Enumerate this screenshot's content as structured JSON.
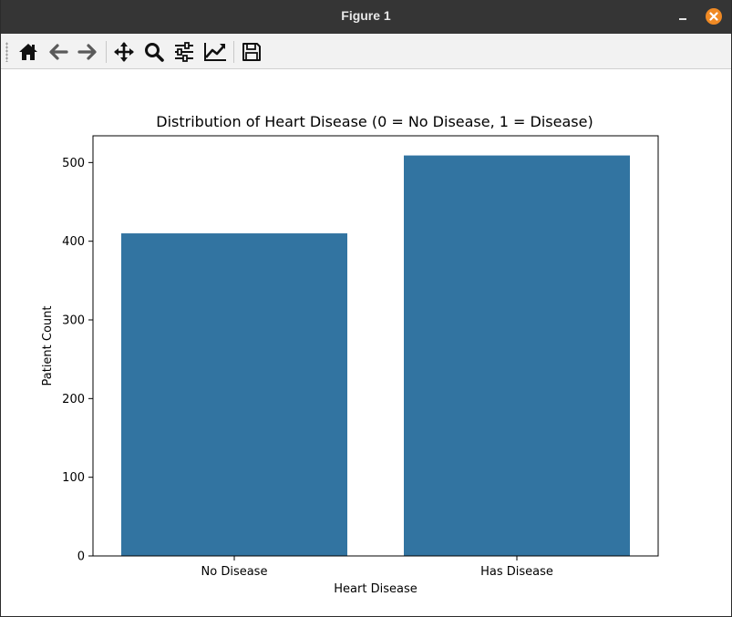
{
  "window": {
    "title": "Figure 1"
  },
  "toolbar": {
    "tools": [
      {
        "icon": "home-icon"
      },
      {
        "icon": "back-arrow-icon"
      },
      {
        "icon": "forward-arrow-icon"
      },
      {
        "icon": "pan-move-icon"
      },
      {
        "icon": "zoom-magnifier-icon"
      },
      {
        "icon": "configure-subplots-icon"
      },
      {
        "icon": "edit-axis-icon"
      },
      {
        "icon": "save-figure-icon"
      }
    ]
  },
  "colors": {
    "bar": "#3274a1",
    "titlebar": "#353535",
    "close": "#f08a24"
  },
  "chart_data": {
    "type": "bar",
    "title": "Distribution of Heart Disease (0 = No Disease, 1 = Disease)",
    "xlabel": "Heart Disease",
    "ylabel": "Patient Count",
    "categories": [
      "No Disease",
      "Has Disease"
    ],
    "values": [
      410,
      509
    ],
    "ylim": [
      0,
      534
    ],
    "yticks": [
      0,
      100,
      200,
      300,
      400,
      500
    ],
    "grid": false,
    "legend": "none"
  }
}
